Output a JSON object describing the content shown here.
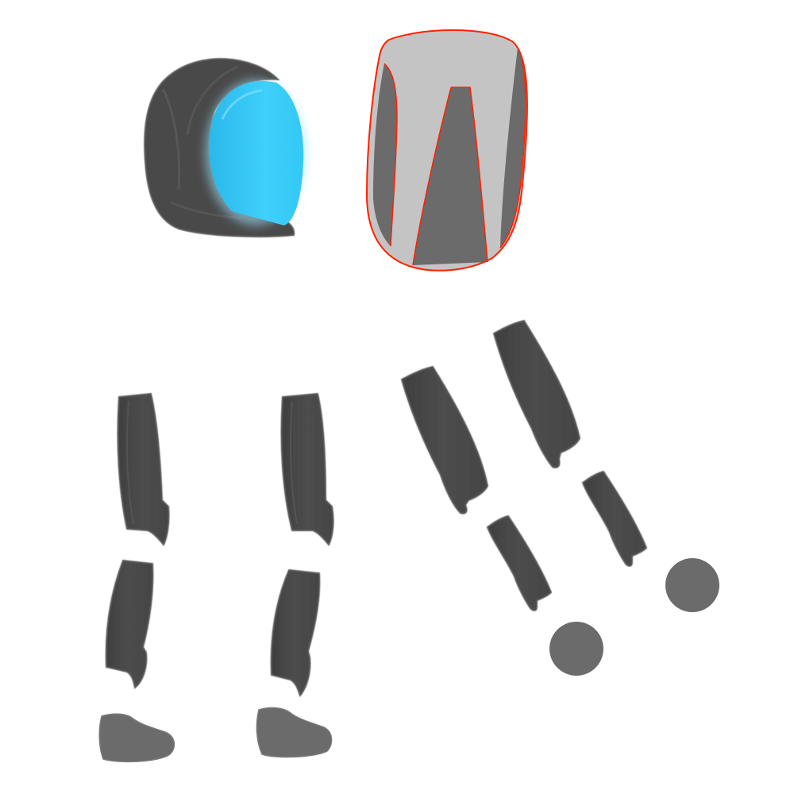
{
  "sheet": {
    "background": "#ffffff"
  },
  "colors": {
    "armor_dark": "#4a4a4a",
    "armor_edge": "#666666",
    "armor_mid": "#6b6b6b",
    "torso_light": "#c4c4c4",
    "visor_blue": "#33c8f5",
    "visor_glow": "#9fe6ff",
    "selection_outline": "#ff2200"
  },
  "parts": [
    {
      "id": "helmet",
      "icon": "helmet-icon",
      "selected": false
    },
    {
      "id": "torso",
      "icon": "torso-icon",
      "selected": true
    },
    {
      "id": "left-upper-leg",
      "icon": "upper-leg-icon",
      "selected": false
    },
    {
      "id": "right-upper-leg",
      "icon": "upper-leg-icon",
      "selected": false
    },
    {
      "id": "left-lower-leg",
      "icon": "lower-leg-icon",
      "selected": false
    },
    {
      "id": "right-lower-leg",
      "icon": "lower-leg-icon",
      "selected": false
    },
    {
      "id": "left-foot",
      "icon": "foot-icon",
      "selected": false
    },
    {
      "id": "right-foot",
      "icon": "foot-icon",
      "selected": false
    },
    {
      "id": "left-upper-arm",
      "icon": "upper-arm-icon",
      "selected": false
    },
    {
      "id": "right-upper-arm",
      "icon": "upper-arm-icon",
      "selected": false
    },
    {
      "id": "left-forearm",
      "icon": "forearm-icon",
      "selected": false
    },
    {
      "id": "right-forearm",
      "icon": "forearm-icon",
      "selected": false
    },
    {
      "id": "left-hand",
      "icon": "hand-icon",
      "selected": false
    },
    {
      "id": "right-hand",
      "icon": "hand-icon",
      "selected": false
    }
  ]
}
